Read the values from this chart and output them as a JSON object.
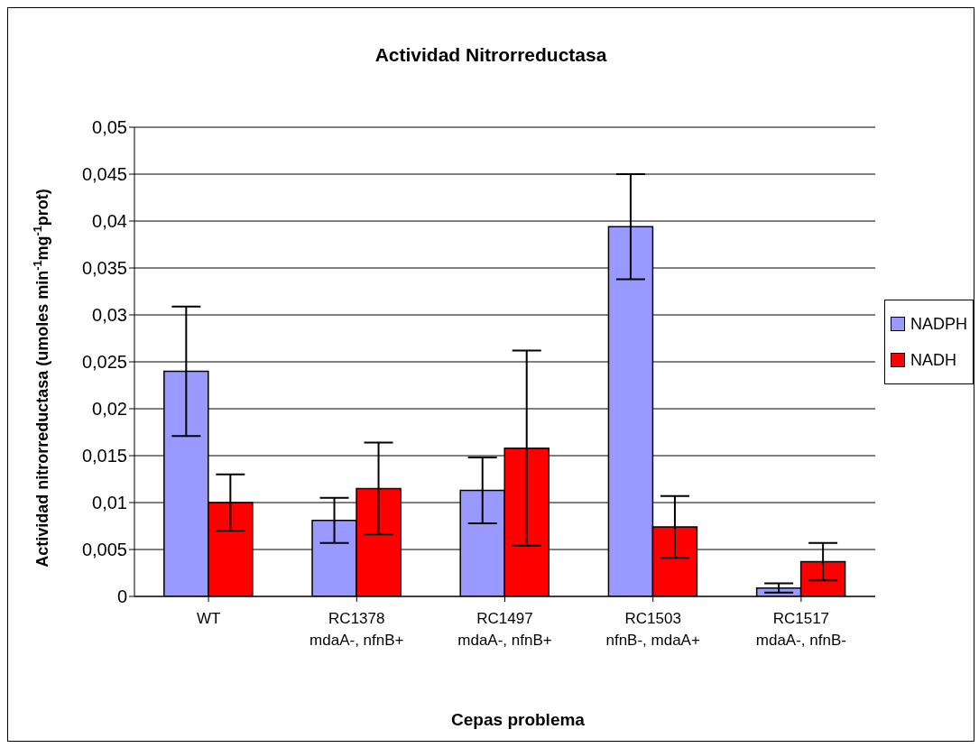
{
  "chart_data": {
    "type": "bar",
    "title": "Actividad Nitrorreductasa",
    "xlabel": "Cepas problema",
    "ylabel": "Actividad nitrorreductasa (umoles min$^{-1}$mg$^{-1}$prot)",
    "categories": [
      "WT",
      "RC1378\nmdaA-, nfnB+",
      "RC1497\nmdaA-, nfnB+",
      "RC1503\nnfnB-, mdaA+",
      "RC1517\nmdaA-, nfnB-"
    ],
    "series": [
      {
        "name": "NADPH",
        "color": "#9999ff",
        "values": [
          0.024,
          0.0081,
          0.0113,
          0.0394,
          0.0009
        ],
        "errors": [
          0.0069,
          0.0024,
          0.0035,
          0.0056,
          0.0005
        ]
      },
      {
        "name": "NADH",
        "color": "#ff0000",
        "values": [
          0.01,
          0.0115,
          0.0158,
          0.0074,
          0.0037
        ],
        "errors": [
          0.003,
          0.0049,
          0.0104,
          0.0033,
          0.002
        ]
      }
    ],
    "ylim": [
      0,
      0.05
    ],
    "yticks": [
      0,
      {
        "value": 0.005,
        "label": "0,005"
      },
      {
        "value": 0.01,
        "label": "0,01"
      },
      {
        "value": 0.015,
        "label": "0,015"
      },
      {
        "value": 0.02,
        "label": "0,02"
      },
      {
        "value": 0.025,
        "label": "0,025"
      },
      {
        "value": 0.03,
        "label": "0,03"
      },
      {
        "value": 0.035,
        "label": "0,035"
      },
      {
        "value": 0.04,
        "label": "0,04"
      },
      {
        "value": 0.045,
        "label": "0,045"
      },
      {
        "value": 0.05,
        "label": "0,05"
      }
    ],
    "grid": "y",
    "legend": "right"
  }
}
